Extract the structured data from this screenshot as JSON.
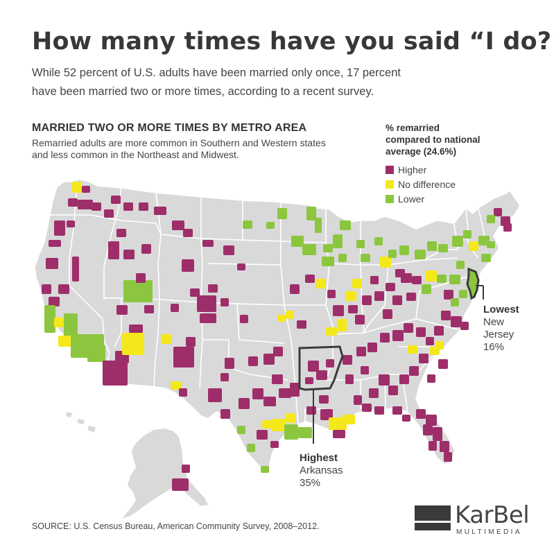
{
  "title": "How many times have you said “I do?”",
  "subtitle_lines": [
    "While 52 percent of U.S. adults have been married only once, 17 percent",
    "have been married two or more times, according to a recent survey."
  ],
  "section": {
    "title": "MARRIED TWO OR MORE TIMES BY METRO AREA",
    "description_lines": [
      "Remarried adults are more common in Southern and Western states",
      "and less common in the Northeast and Midwest."
    ]
  },
  "legend": {
    "title_lines": [
      "% remarried",
      "compared to national",
      "average (24.6%)"
    ],
    "items": [
      {
        "label": "Higher",
        "color": "#9e2e6a"
      },
      {
        "label": "No difference",
        "color": "#f5e81a"
      },
      {
        "label": "Lower",
        "color": "#8cc63f"
      }
    ]
  },
  "callouts": {
    "lowest": {
      "label": "Lowest",
      "state": "New",
      "state2": "Jersey",
      "value": "16%"
    },
    "highest": {
      "label": "Highest",
      "state": "Arkansas",
      "value": "35%"
    }
  },
  "source": "SOURCE:  U.S. Census Bureau, American Community Survey, 2008–2012.",
  "logo": {
    "name": "KarBel",
    "sub": "MULTIMEDIA"
  },
  "colors": {
    "land": "#d9d9da",
    "border": "#ffffff",
    "higher": "#9e2e6a",
    "no_difference": "#f5e81a",
    "lower": "#8cc63f",
    "highlight_outline": "#3a3a3a"
  }
}
